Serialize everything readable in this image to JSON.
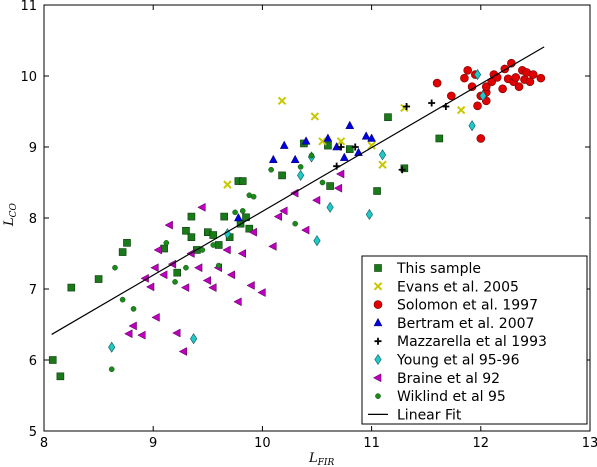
{
  "chart_data": {
    "type": "scatter",
    "xlabel": "L",
    "xlabel_sub": "FIR",
    "ylabel": "L",
    "ylabel_sub": "CO",
    "xlim": [
      8,
      13
    ],
    "ylim": [
      5,
      11
    ],
    "xticks": [
      8,
      9,
      10,
      11,
      12,
      13
    ],
    "yticks": [
      5,
      6,
      7,
      8,
      9,
      10,
      11
    ],
    "grid": false,
    "legend_position": "lower-right",
    "fit_line": {
      "name": "Linear Fit",
      "x": [
        8.07,
        12.58
      ],
      "y": [
        6.36,
        10.41
      ],
      "color": "#000000"
    },
    "series": [
      {
        "name": "This sample",
        "marker": "square",
        "color": "#1a7a1a",
        "points": [
          [
            8.08,
            6.0
          ],
          [
            8.15,
            5.77
          ],
          [
            8.25,
            7.02
          ],
          [
            8.5,
            7.14
          ],
          [
            8.72,
            7.52
          ],
          [
            8.76,
            7.65
          ],
          [
            9.1,
            7.57
          ],
          [
            9.22,
            7.23
          ],
          [
            9.3,
            7.82
          ],
          [
            9.35,
            7.73
          ],
          [
            9.35,
            8.02
          ],
          [
            9.4,
            7.55
          ],
          [
            9.5,
            7.8
          ],
          [
            9.55,
            7.76
          ],
          [
            9.6,
            7.62
          ],
          [
            9.65,
            8.02
          ],
          [
            9.7,
            7.73
          ],
          [
            9.8,
            7.92
          ],
          [
            9.85,
            8.01
          ],
          [
            9.88,
            7.85
          ],
          [
            9.78,
            8.52
          ],
          [
            9.82,
            8.52
          ],
          [
            10.18,
            8.6
          ],
          [
            10.38,
            9.05
          ],
          [
            10.6,
            9.02
          ],
          [
            10.62,
            8.45
          ],
          [
            10.8,
            8.97
          ],
          [
            11.05,
            8.38
          ],
          [
            11.15,
            9.42
          ],
          [
            11.3,
            8.7
          ],
          [
            11.62,
            9.12
          ]
        ]
      },
      {
        "name": "Evans et al. 2005",
        "marker": "x",
        "color": "#c8c800",
        "points": [
          [
            9.68,
            8.47
          ],
          [
            10.18,
            9.65
          ],
          [
            10.48,
            9.43
          ],
          [
            10.55,
            9.08
          ],
          [
            10.72,
            9.08
          ],
          [
            11.0,
            9.02
          ],
          [
            11.1,
            8.75
          ],
          [
            11.3,
            9.55
          ],
          [
            11.82,
            9.52
          ]
        ]
      },
      {
        "name": "Solomon et al. 1997",
        "marker": "circle",
        "color": "#e00000",
        "points": [
          [
            11.6,
            9.9
          ],
          [
            11.73,
            9.72
          ],
          [
            11.85,
            9.97
          ],
          [
            11.92,
            9.85
          ],
          [
            11.95,
            10.02
          ],
          [
            11.97,
            9.58
          ],
          [
            12.0,
            9.12
          ],
          [
            12.0,
            9.72
          ],
          [
            12.05,
            9.77
          ],
          [
            12.05,
            9.85
          ],
          [
            12.1,
            9.92
          ],
          [
            12.12,
            10.02
          ],
          [
            12.15,
            9.98
          ],
          [
            12.2,
            9.82
          ],
          [
            12.22,
            10.1
          ],
          [
            12.25,
            9.96
          ],
          [
            12.28,
            10.18
          ],
          [
            12.3,
            9.92
          ],
          [
            12.32,
            9.98
          ],
          [
            12.35,
            9.85
          ],
          [
            12.38,
            10.08
          ],
          [
            12.4,
            9.95
          ],
          [
            12.42,
            10.05
          ],
          [
            12.45,
            9.92
          ],
          [
            12.48,
            10.02
          ],
          [
            12.55,
            9.97
          ],
          [
            11.88,
            10.08
          ],
          [
            12.05,
            9.65
          ]
        ]
      },
      {
        "name": "Bertram et al. 2007",
        "marker": "triangle-up",
        "color": "#0000dd",
        "points": [
          [
            9.78,
            8.0
          ],
          [
            10.1,
            8.82
          ],
          [
            10.2,
            9.02
          ],
          [
            10.3,
            8.82
          ],
          [
            10.4,
            9.08
          ],
          [
            10.6,
            9.12
          ],
          [
            10.68,
            9.0
          ],
          [
            10.75,
            8.85
          ],
          [
            10.8,
            9.3
          ],
          [
            10.88,
            8.92
          ],
          [
            10.95,
            9.15
          ],
          [
            11.0,
            9.12
          ]
        ]
      },
      {
        "name": "Mazzarella et al 1993",
        "marker": "plus",
        "color": "#000000",
        "points": [
          [
            10.68,
            8.73
          ],
          [
            10.72,
            9.0
          ],
          [
            10.85,
            9.0
          ],
          [
            11.28,
            8.68
          ],
          [
            11.32,
            9.57
          ],
          [
            11.68,
            9.57
          ],
          [
            11.55,
            9.62
          ]
        ]
      },
      {
        "name": "Young et al 95-96",
        "marker": "diamond",
        "color": "#20c8c8",
        "points": [
          [
            8.62,
            6.18
          ],
          [
            9.37,
            6.3
          ],
          [
            9.68,
            7.78
          ],
          [
            10.35,
            8.6
          ],
          [
            10.45,
            8.86
          ],
          [
            10.5,
            7.68
          ],
          [
            10.62,
            8.15
          ],
          [
            10.98,
            8.05
          ],
          [
            11.1,
            8.89
          ],
          [
            11.92,
            9.3
          ],
          [
            11.97,
            10.02
          ],
          [
            12.02,
            9.72
          ]
        ]
      },
      {
        "name": "Braine et al 92",
        "marker": "triangle-left",
        "color": "#bb00bb",
        "points": [
          [
            8.78,
            6.37
          ],
          [
            8.82,
            6.48
          ],
          [
            8.9,
            6.35
          ],
          [
            8.93,
            7.15
          ],
          [
            8.98,
            7.03
          ],
          [
            9.02,
            7.3
          ],
          [
            9.03,
            6.6
          ],
          [
            9.05,
            7.55
          ],
          [
            9.1,
            7.2
          ],
          [
            9.15,
            7.9
          ],
          [
            9.18,
            7.35
          ],
          [
            9.22,
            6.38
          ],
          [
            9.28,
            6.12
          ],
          [
            9.3,
            7.02
          ],
          [
            9.35,
            7.5
          ],
          [
            9.42,
            7.3
          ],
          [
            9.45,
            8.15
          ],
          [
            9.5,
            7.12
          ],
          [
            9.55,
            7.02
          ],
          [
            9.6,
            7.3
          ],
          [
            9.68,
            7.55
          ],
          [
            9.72,
            7.2
          ],
          [
            9.78,
            6.82
          ],
          [
            9.82,
            7.5
          ],
          [
            9.9,
            7.05
          ],
          [
            9.92,
            7.8
          ],
          [
            10.0,
            6.95
          ],
          [
            10.1,
            7.6
          ],
          [
            10.15,
            8.02
          ],
          [
            10.2,
            8.1
          ],
          [
            10.3,
            8.35
          ],
          [
            10.4,
            7.83
          ],
          [
            10.5,
            8.25
          ],
          [
            10.7,
            8.42
          ],
          [
            10.72,
            8.62
          ]
        ]
      },
      {
        "name": "Wiklind et al 95",
        "marker": "circle-small",
        "color": "#1a8a1a",
        "points": [
          [
            8.65,
            7.3
          ],
          [
            8.72,
            6.85
          ],
          [
            8.82,
            6.72
          ],
          [
            9.12,
            7.65
          ],
          [
            9.2,
            7.1
          ],
          [
            9.3,
            7.3
          ],
          [
            9.45,
            7.55
          ],
          [
            9.55,
            7.62
          ],
          [
            9.6,
            7.33
          ],
          [
            9.75,
            8.08
          ],
          [
            9.82,
            8.1
          ],
          [
            9.88,
            8.32
          ],
          [
            9.92,
            8.3
          ],
          [
            10.08,
            8.68
          ],
          [
            10.3,
            7.92
          ],
          [
            10.35,
            8.72
          ],
          [
            10.45,
            8.88
          ],
          [
            10.55,
            8.5
          ],
          [
            8.62,
            5.87
          ]
        ]
      }
    ]
  }
}
